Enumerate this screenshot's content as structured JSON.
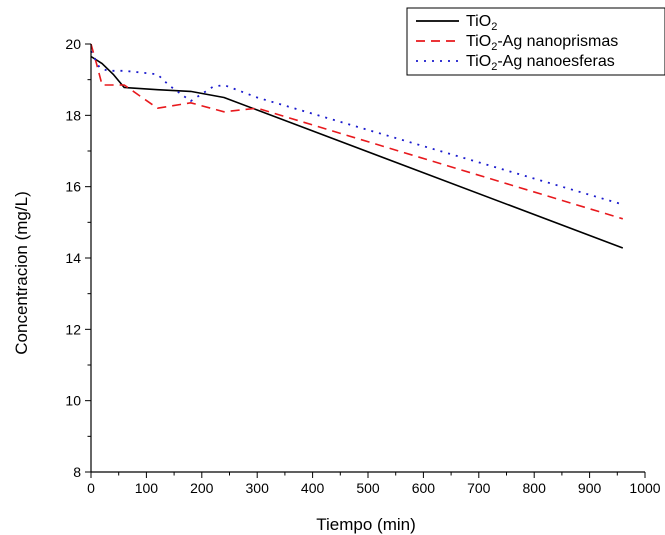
{
  "chart_data": {
    "type": "line",
    "title": "",
    "xlabel": "Tiempo (min)",
    "ylabel": "Concentracion (mg/L)",
    "xlim": [
      0,
      1000
    ],
    "ylim": [
      8,
      20
    ],
    "xticks": [
      "0",
      "100",
      "200",
      "300",
      "400",
      "500",
      "600",
      "700",
      "800",
      "900",
      "1000"
    ],
    "yticks": [
      "8",
      "10",
      "12",
      "14",
      "16",
      "18",
      "20"
    ],
    "grid": false,
    "legend_position": "top-right",
    "series": [
      {
        "name_main": "TiO",
        "name_sub": "2",
        "name_rest": "",
        "color": "#000000",
        "dash": "solid",
        "x": [
          0,
          20,
          40,
          60,
          120,
          180,
          240,
          300,
          960
        ],
        "y": [
          19.65,
          19.45,
          19.15,
          18.78,
          18.72,
          18.67,
          18.5,
          18.15,
          14.28
        ]
      },
      {
        "name_main": "TiO",
        "name_sub": "2",
        "name_rest": "-Ag nanoprismas",
        "color": "#e8191d",
        "dash": "dashed",
        "x": [
          0,
          10,
          20,
          60,
          120,
          180,
          240,
          300,
          960
        ],
        "y": [
          20.0,
          19.45,
          18.85,
          18.85,
          18.2,
          18.35,
          18.1,
          18.2,
          15.1
        ]
      },
      {
        "name_main": "TiO",
        "name_sub": "2",
        "name_rest": "-Ag nanoesferas",
        "color": "#1a1acd",
        "dash": "dotted",
        "x": [
          0,
          15,
          30,
          60,
          120,
          140,
          180,
          220,
          240,
          300,
          960
        ],
        "y": [
          19.8,
          19.35,
          19.25,
          19.25,
          19.15,
          18.85,
          18.4,
          18.8,
          18.85,
          18.5,
          15.5
        ]
      }
    ]
  }
}
